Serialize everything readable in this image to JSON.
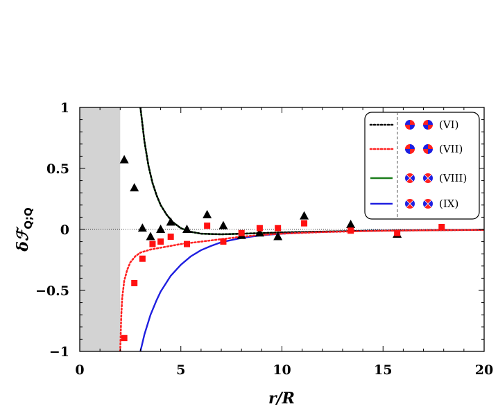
{
  "chart_data": {
    "type": "scatter",
    "title": "",
    "xlabel": "r/R",
    "ylabel": "δℱ_{Q;Q}",
    "ylabel_main": "δℱ",
    "ylabel_sub": "Q;Q",
    "xlim": [
      0,
      20
    ],
    "ylim": [
      -1,
      1
    ],
    "x_ticks": [
      0,
      5,
      10,
      15,
      20
    ],
    "x_tick_labels": [
      "0",
      "5",
      "10",
      "15",
      "20"
    ],
    "y_ticks": [
      -1,
      -0.5,
      0,
      0.5,
      1
    ],
    "y_tick_labels": [
      "−1",
      "−0.5",
      "0",
      "0.5",
      "1"
    ],
    "excluded_region": [
      0,
      2
    ],
    "reference_line_y": 0,
    "legend_position": "top-right",
    "curves": [
      {
        "label": "(VI)",
        "style": "dotted",
        "color": "#000000",
        "x": [
          3.0,
          3.2,
          3.4,
          3.6,
          3.8,
          4.0,
          4.3,
          4.6,
          5.0,
          5.5,
          6.0,
          7.0,
          8.0,
          9.0,
          10.0,
          12.0,
          14.0,
          16.0,
          18.0,
          20.0
        ],
        "y": [
          1.0,
          0.72,
          0.52,
          0.38,
          0.28,
          0.2,
          0.12,
          0.06,
          0.01,
          -0.02,
          -0.035,
          -0.04,
          -0.035,
          -0.03,
          -0.025,
          -0.018,
          -0.012,
          -0.008,
          -0.005,
          -0.003
        ]
      },
      {
        "label": "(VII)",
        "style": "dotted",
        "color": "#ff2222",
        "x": [
          2.0,
          2.05,
          2.1,
          2.2,
          2.35,
          2.5,
          2.75,
          3.0,
          3.5,
          4.0,
          4.5,
          5.0,
          5.5,
          6.0,
          7.0,
          8.0,
          9.0,
          10.0,
          12.0,
          14.0,
          16.0,
          18.0,
          20.0
        ],
        "y": [
          -1.0,
          -0.72,
          -0.56,
          -0.42,
          -0.33,
          -0.27,
          -0.22,
          -0.19,
          -0.165,
          -0.15,
          -0.135,
          -0.12,
          -0.11,
          -0.1,
          -0.08,
          -0.06,
          -0.045,
          -0.035,
          -0.022,
          -0.014,
          -0.009,
          -0.006,
          -0.004
        ]
      },
      {
        "label": "(VIII)",
        "style": "solid",
        "color": "#1a7d1a",
        "x": [
          3.0,
          3.2,
          3.4,
          3.6,
          3.8,
          4.0,
          4.3,
          4.6,
          5.0,
          5.5,
          6.0,
          7.0,
          8.0,
          9.0,
          10.0,
          12.0,
          14.0,
          16.0,
          18.0,
          20.0
        ],
        "y": [
          1.0,
          0.72,
          0.52,
          0.38,
          0.28,
          0.2,
          0.12,
          0.06,
          0.01,
          -0.02,
          -0.035,
          -0.04,
          -0.035,
          -0.03,
          -0.025,
          -0.018,
          -0.012,
          -0.008,
          -0.005,
          -0.003
        ]
      },
      {
        "label": "(IX)",
        "style": "solid",
        "color": "#1f1fe0",
        "x": [
          3.0,
          3.2,
          3.5,
          3.8,
          4.0,
          4.5,
          5.0,
          5.5,
          6.0,
          6.5,
          7.0,
          8.0,
          9.0,
          10.0,
          11.0,
          12.0,
          14.0,
          16.0,
          18.0,
          20.0
        ],
        "y": [
          -1.0,
          -0.86,
          -0.7,
          -0.58,
          -0.51,
          -0.38,
          -0.29,
          -0.22,
          -0.17,
          -0.135,
          -0.105,
          -0.07,
          -0.048,
          -0.035,
          -0.026,
          -0.02,
          -0.012,
          -0.008,
          -0.005,
          -0.003
        ]
      }
    ],
    "series": [
      {
        "marker": "triangle",
        "color": "#000000",
        "x": [
          2.2,
          2.7,
          3.1,
          3.5,
          4.0,
          4.5,
          5.3,
          6.3,
          7.1,
          8.0,
          8.9,
          9.8,
          11.1,
          13.4,
          15.7
        ],
        "y": [
          0.57,
          0.34,
          0.01,
          -0.06,
          0.0,
          0.06,
          0.0,
          0.12,
          0.03,
          -0.05,
          -0.03,
          -0.06,
          0.11,
          0.04,
          -0.04
        ]
      },
      {
        "marker": "square",
        "color": "#ff1111",
        "x": [
          2.2,
          2.7,
          3.1,
          3.6,
          4.0,
          4.5,
          5.3,
          6.3,
          7.1,
          8.0,
          8.9,
          9.8,
          11.1,
          13.4,
          15.7,
          17.9
        ],
        "y": [
          -0.89,
          -0.44,
          -0.24,
          -0.12,
          -0.1,
          -0.06,
          -0.12,
          0.03,
          -0.1,
          -0.03,
          0.01,
          0.01,
          0.05,
          -0.01,
          -0.03,
          0.02
        ]
      }
    ]
  }
}
